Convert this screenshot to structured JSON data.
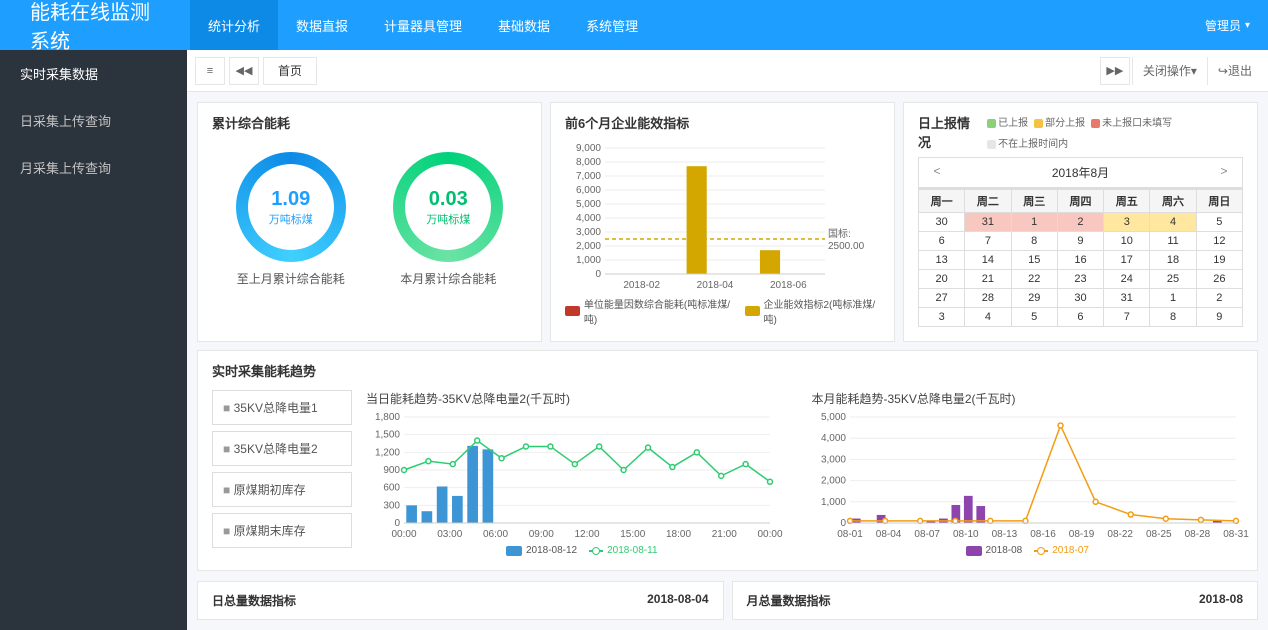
{
  "brand": "能耗在线监测系统",
  "topnav": [
    "统计分析",
    "数据直报",
    "计量器具管理",
    "基础数据",
    "系统管理"
  ],
  "topnav_active": 0,
  "admin_label": "管理员",
  "sidebar": [
    "实时采集数据",
    "日采集上传查询",
    "月采集上传查询"
  ],
  "tab_home": "首页",
  "tabbar_right": {
    "close_ops": "关闭操作",
    "logout": "退出"
  },
  "card_gauge": {
    "title": "累计综合能耗",
    "left": {
      "value": "1.09",
      "unit": "万吨标煤",
      "label": "至上月累计综合能耗"
    },
    "right": {
      "value": "0.03",
      "unit": "万吨标煤",
      "label": "本月累计综合能耗"
    }
  },
  "card_bar6": {
    "title": "前6个月企业能效指标",
    "ylim": [
      0,
      9000
    ],
    "ystep": 1000,
    "categories": [
      "2018-02",
      "2018-04",
      "2018-06"
    ],
    "series_a": {
      "name": "单位能量因数综合能耗(吨标准煤/吨)",
      "color": "#c0392b",
      "values": [
        0,
        0,
        0,
        0,
        0,
        0
      ]
    },
    "series_b": {
      "name": "企业能效指标2(吨标准煤/吨)",
      "color": "#d4a700",
      "values": [
        0,
        0,
        7700,
        0,
        1700,
        0
      ]
    },
    "target": {
      "label": "国标: 2500.00",
      "value": 2500,
      "color": "#d4a700"
    }
  },
  "card_cal": {
    "title": "日上报情况",
    "legend": [
      {
        "label": "已上报",
        "color": "#8bd17c"
      },
      {
        "label": "部分上报",
        "color": "#f5c342"
      },
      {
        "label": "未上报口未填写",
        "color": "#e77a6b"
      },
      {
        "label": "不在上报时间内",
        "color": "#e6e6e6"
      }
    ],
    "month_label": "2018年8月",
    "weekdays": [
      "周一",
      "周二",
      "周三",
      "周四",
      "周五",
      "周六",
      "周日"
    ],
    "cells": [
      [
        {
          "d": "30"
        },
        {
          "d": "31",
          "c": "c-red"
        },
        {
          "d": "1",
          "c": "c-red"
        },
        {
          "d": "2",
          "c": "c-red"
        },
        {
          "d": "3",
          "c": "c-yellow"
        },
        {
          "d": "4",
          "c": "c-yellow"
        },
        {
          "d": "5"
        }
      ],
      [
        {
          "d": "6"
        },
        {
          "d": "7"
        },
        {
          "d": "8"
        },
        {
          "d": "9"
        },
        {
          "d": "10"
        },
        {
          "d": "11"
        },
        {
          "d": "12"
        }
      ],
      [
        {
          "d": "13"
        },
        {
          "d": "14"
        },
        {
          "d": "15"
        },
        {
          "d": "16"
        },
        {
          "d": "17"
        },
        {
          "d": "18"
        },
        {
          "d": "19"
        }
      ],
      [
        {
          "d": "20"
        },
        {
          "d": "21"
        },
        {
          "d": "22"
        },
        {
          "d": "23"
        },
        {
          "d": "24"
        },
        {
          "d": "25"
        },
        {
          "d": "26"
        }
      ],
      [
        {
          "d": "27"
        },
        {
          "d": "28"
        },
        {
          "d": "29"
        },
        {
          "d": "30"
        },
        {
          "d": "31"
        },
        {
          "d": "1"
        },
        {
          "d": "2"
        }
      ],
      [
        {
          "d": "3"
        },
        {
          "d": "4"
        },
        {
          "d": "5"
        },
        {
          "d": "6"
        },
        {
          "d": "7"
        },
        {
          "d": "8"
        },
        {
          "d": "9"
        }
      ]
    ]
  },
  "card_trend": {
    "title": "实时采集能耗趋势",
    "side_items": [
      "35KV总降电量1",
      "35KV总降电量2",
      "原煤期初库存",
      "原煤期末库存"
    ],
    "daily": {
      "title": "当日能耗趋势-35KV总降电量2(千瓦时)",
      "ylim": [
        0,
        1800
      ],
      "ystep": 300,
      "x_labels": [
        "00:00",
        "03:00",
        "06:00",
        "09:00",
        "12:00",
        "15:00",
        "18:00",
        "21:00",
        "00:00"
      ],
      "bar": {
        "name": "2018-08-12",
        "color": "#3d95d5",
        "values": [
          300,
          200,
          620,
          460,
          1310,
          1250,
          0,
          0,
          0,
          0,
          0,
          0,
          0,
          0,
          0,
          0,
          0,
          0,
          0,
          0,
          0,
          0,
          0,
          0
        ]
      },
      "line": {
        "name": "2018-08-11",
        "color": "#2ecc71",
        "values": [
          900,
          1050,
          1000,
          1400,
          1100,
          1300,
          1300,
          1000,
          1300,
          900,
          1280,
          950,
          1200,
          800,
          1000,
          700
        ]
      }
    },
    "monthly": {
      "title": "本月能耗趋势-35KV总降电量2(千瓦时)",
      "ylim": [
        0,
        5000
      ],
      "ystep": 1000,
      "x_labels": [
        "08-01",
        "08-04",
        "08-07",
        "08-10",
        "08-13",
        "08-16",
        "08-19",
        "08-22",
        "08-25",
        "08-28",
        "08-31"
      ],
      "bar": {
        "name": "2018-08",
        "color": "#8e44ad",
        "values": [
          210,
          0,
          380,
          0,
          0,
          0,
          120,
          210,
          850,
          1280,
          800,
          0,
          0,
          0,
          0,
          0,
          0,
          0,
          0,
          0,
          0,
          0,
          0,
          0,
          0,
          0,
          0,
          0,
          0,
          120,
          0
        ]
      },
      "line": {
        "name": "2018-07",
        "color": "#f39c12",
        "values": [
          100,
          100,
          100,
          100,
          100,
          100,
          4600,
          1000,
          400,
          200,
          150,
          100
        ]
      }
    }
  },
  "bottom": {
    "left_title": "日总量数据指标",
    "left_date": "2018-08-04",
    "right_title": "月总量数据指标",
    "right_date": "2018-08"
  }
}
